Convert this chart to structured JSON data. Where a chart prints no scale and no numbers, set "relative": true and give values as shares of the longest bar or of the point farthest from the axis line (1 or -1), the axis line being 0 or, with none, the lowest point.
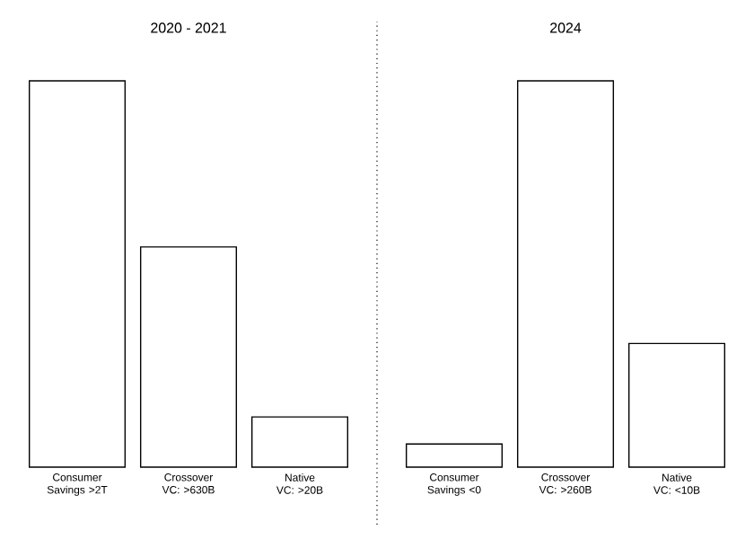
{
  "chart_data": [
    {
      "type": "bar",
      "title": "2020 - 2021",
      "categories": [
        "Consumer Savings >2T",
        "Crossover VC: >630B",
        "Native VC: >20B"
      ],
      "values": [
        1,
        0.57,
        0.13
      ],
      "color": "#ffffff",
      "relative": true
    },
    {
      "type": "bar",
      "title": "2024",
      "categories": [
        "Consumer Savings <0",
        "Crossover VC: >260B",
        "Native VC: <10B"
      ],
      "values": [
        0.06,
        1,
        0.32
      ],
      "color": "#ffffff",
      "relative": true
    }
  ]
}
